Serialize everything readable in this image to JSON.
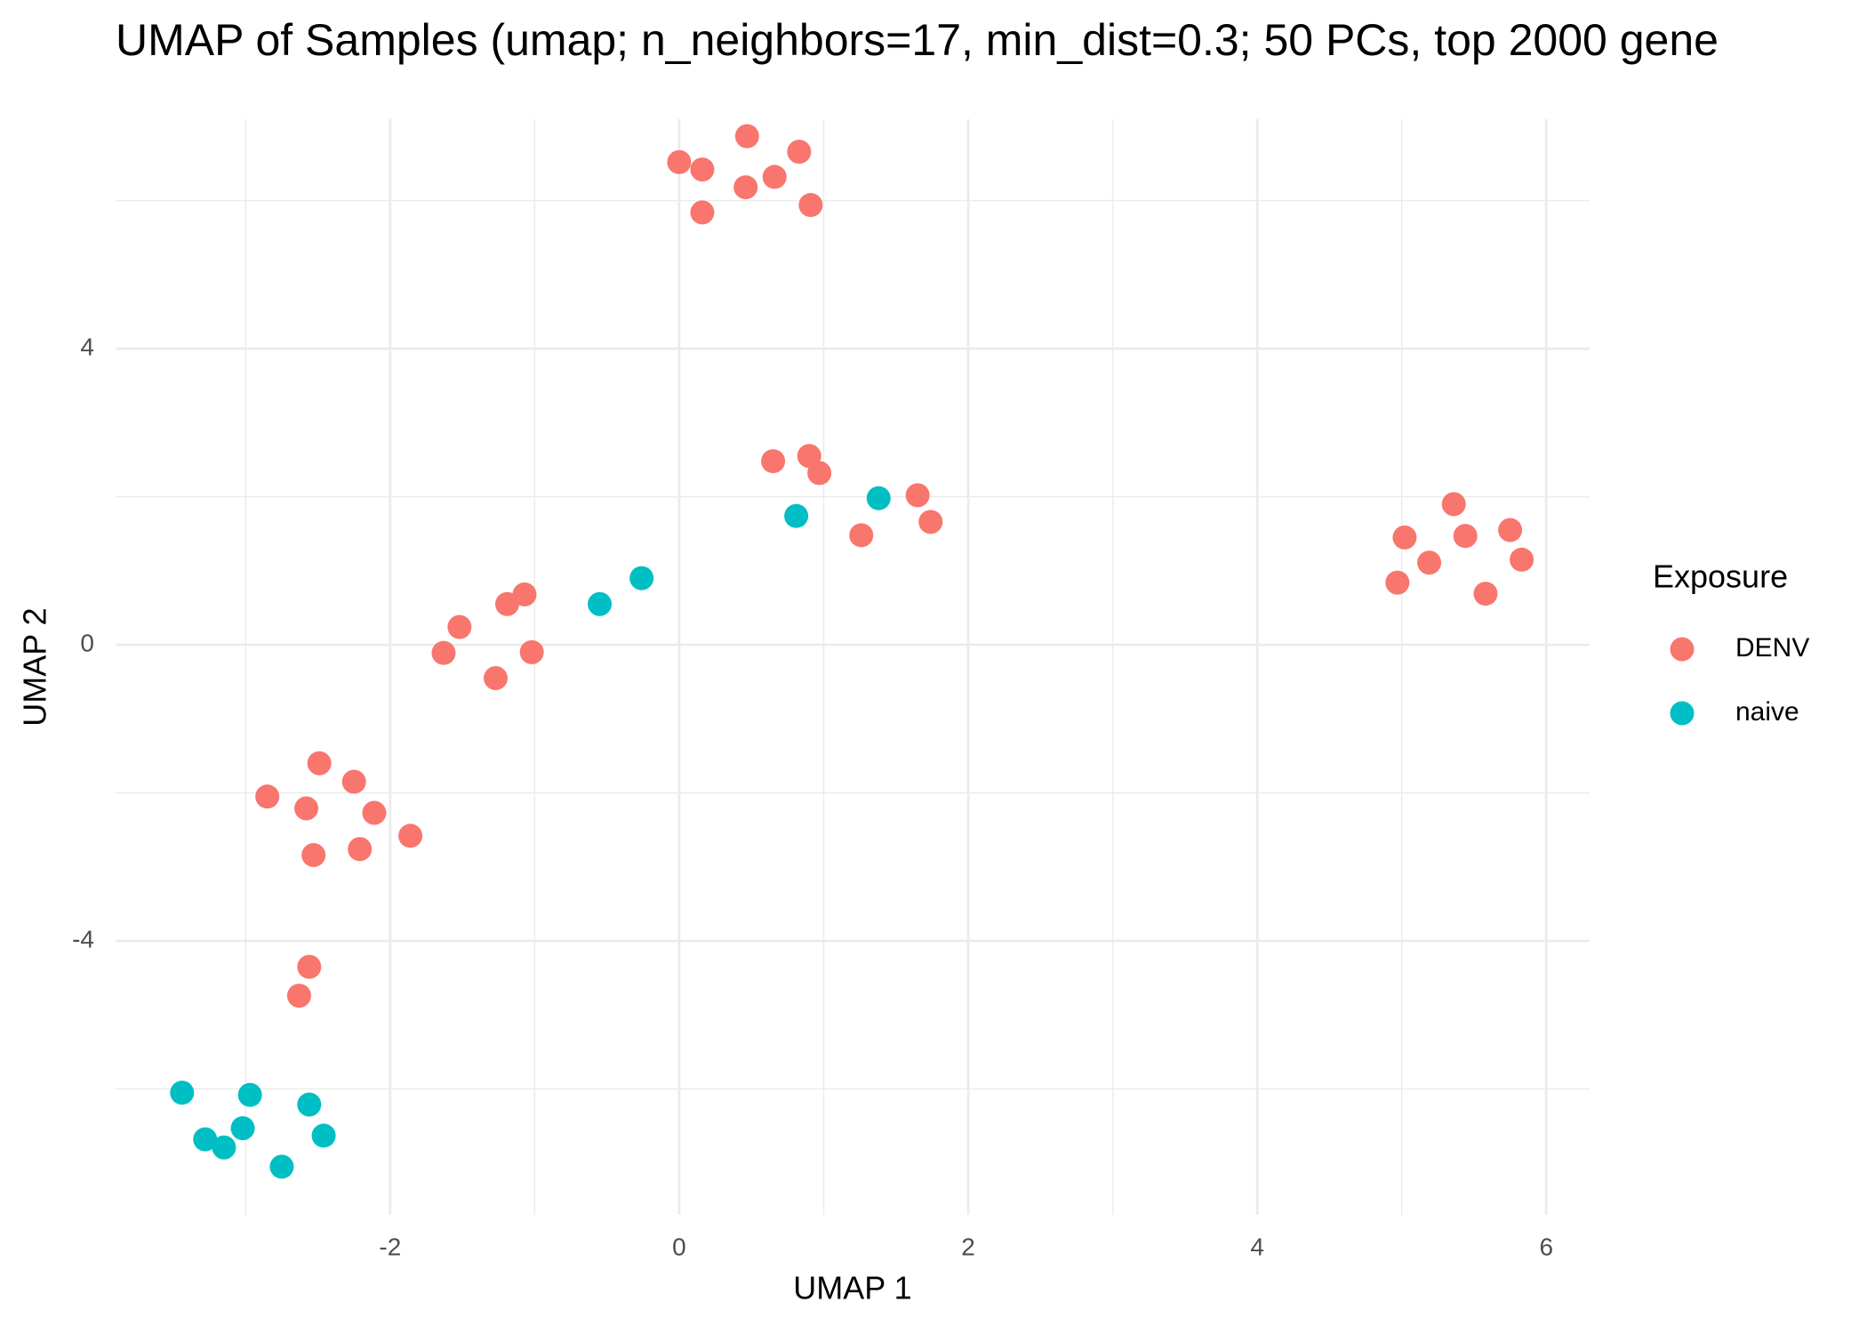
{
  "chart_data": {
    "type": "scatter",
    "title": "UMAP of Samples (umap; n_neighbors=17, min_dist=0.3; 50 PCs, top 2000 gene",
    "x_label": "UMAP 1",
    "y_label": "UMAP 2",
    "legend_title": "Exposure",
    "legend_position": "right",
    "xlim": [
      -3.9,
      6.3
    ],
    "ylim": [
      -7.7,
      7.1
    ],
    "xticks": [
      -2,
      0,
      2,
      4,
      6
    ],
    "yticks": [
      -4,
      0,
      4
    ],
    "xminor": [
      -3,
      -1,
      1,
      3,
      5
    ],
    "yminor": [
      -6,
      -2,
      2,
      6
    ],
    "grid": true,
    "series": [
      {
        "name": "DENV",
        "color": "#F8766D",
        "x": [
          0,
          0.16,
          0.47,
          0.83,
          0.46,
          0.66,
          0.16,
          0.91,
          0.65,
          0.9,
          0.97,
          1.65,
          1.74,
          1.26,
          5.36,
          5.02,
          5.44,
          5.75,
          5.19,
          5.83,
          4.97,
          5.58,
          -1.52,
          -1.19,
          -1.07,
          -1.63,
          -1.02,
          -1.27,
          -2.49,
          -2.85,
          -2.25,
          -2.58,
          -2.11,
          -2.21,
          -2.53,
          -1.86,
          -2.56,
          -2.63
        ],
        "y": [
          6.52,
          6.42,
          6.87,
          6.66,
          6.18,
          6.32,
          5.84,
          5.94,
          2.48,
          2.55,
          2.32,
          2.02,
          1.66,
          1.48,
          1.9,
          1.45,
          1.47,
          1.55,
          1.11,
          1.15,
          0.84,
          0.69,
          0.24,
          0.55,
          0.68,
          -0.11,
          -0.1,
          -0.45,
          -1.6,
          -2.05,
          -1.85,
          -2.21,
          -2.27,
          -2.76,
          -2.84,
          -2.58,
          -4.35,
          -4.74
        ]
      },
      {
        "name": "naive",
        "color": "#00BFC4",
        "x": [
          -0.55,
          -0.26,
          0.81,
          1.38,
          -3.44,
          -2.97,
          -2.56,
          -3.28,
          -3.02,
          -3.15,
          -2.46,
          -2.75
        ],
        "y": [
          0.55,
          0.9,
          1.74,
          1.98,
          -6.05,
          -6.08,
          -6.21,
          -6.68,
          -6.53,
          -6.79,
          -6.63,
          -7.05
        ]
      }
    ]
  }
}
